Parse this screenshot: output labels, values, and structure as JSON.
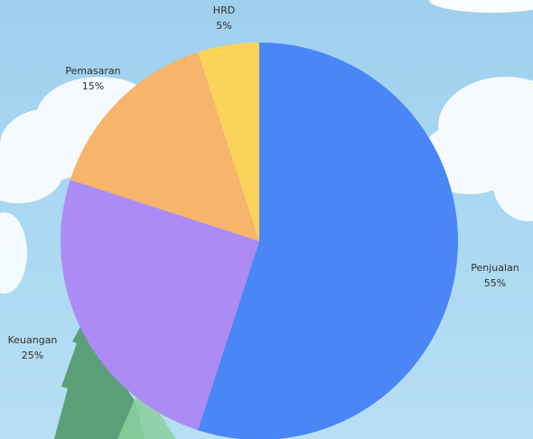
{
  "chart_data": {
    "type": "pie",
    "title": "",
    "slices": [
      {
        "label": "Penjualan",
        "value": 55,
        "pct_label": "55%",
        "color": "#4a86f5"
      },
      {
        "label": "Keuangan",
        "value": 25,
        "pct_label": "25%",
        "color": "#ad8bf4"
      },
      {
        "label": "Pemasaran",
        "value": 15,
        "pct_label": "15%",
        "color": "#f7b46b"
      },
      {
        "label": "HRD",
        "value": 5,
        "pct_label": "5%",
        "color": "#fbd35a"
      }
    ]
  },
  "background": {
    "sky_color": "#a9d5f0",
    "cloud_color": "#ffffff",
    "tree_color": "#5fa77a"
  }
}
